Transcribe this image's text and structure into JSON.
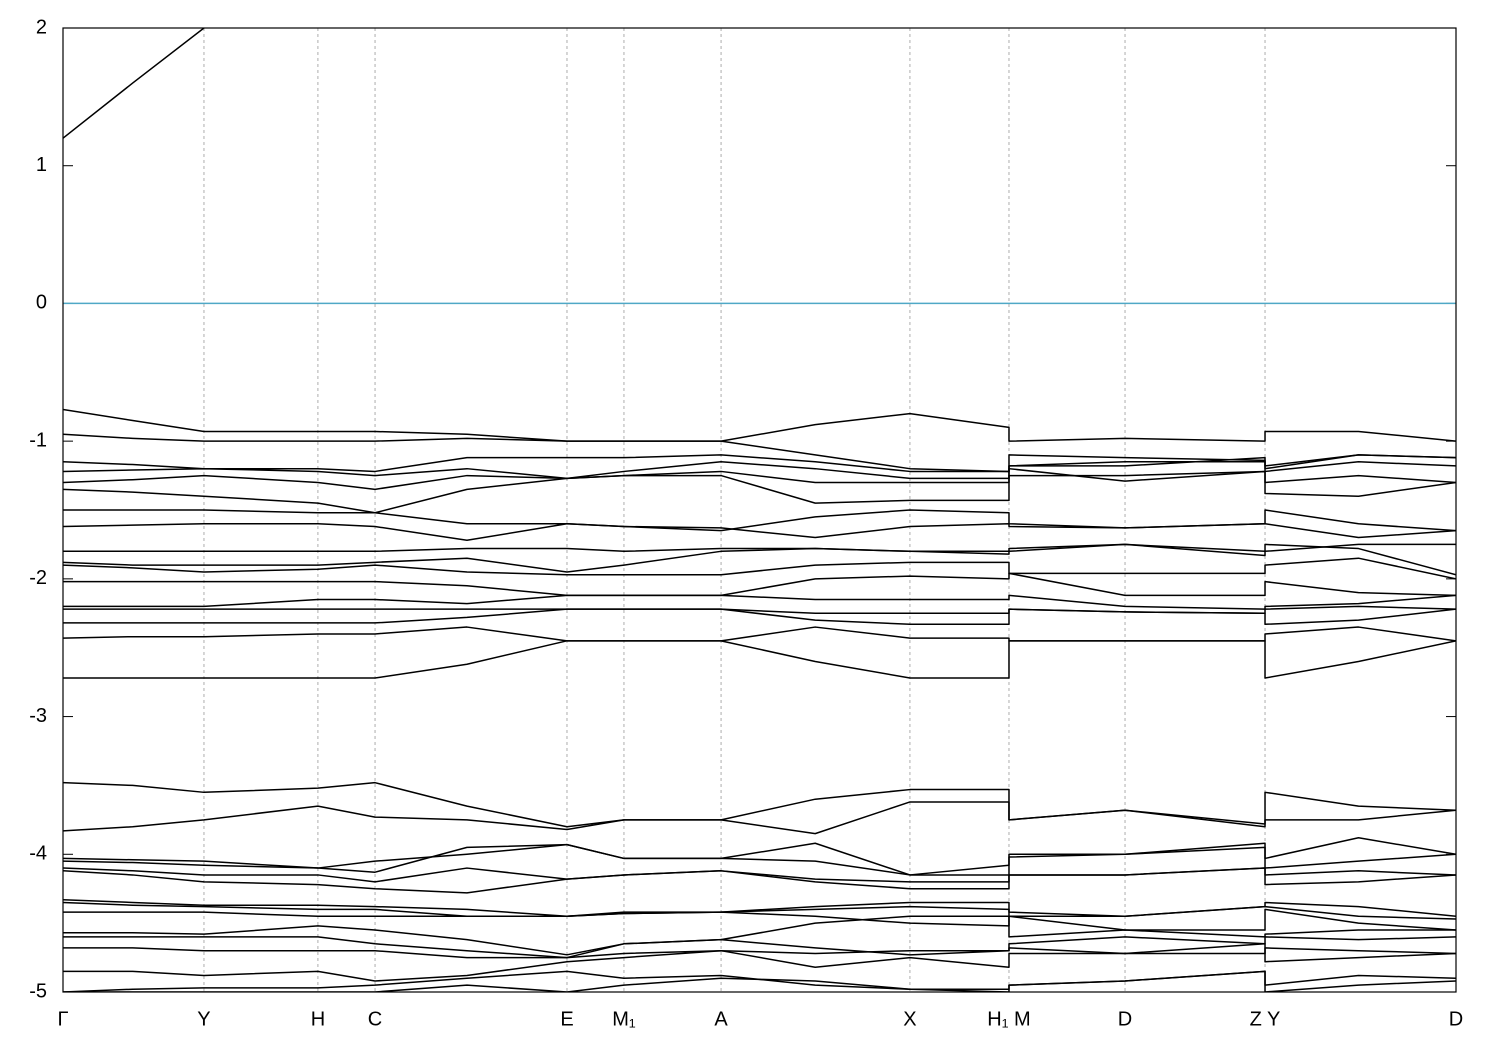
{
  "chart_data": {
    "type": "line",
    "x": [
      0,
      0.05,
      0.1012,
      0.183,
      0.224,
      0.29,
      0.3618,
      0.4027,
      0.4724,
      0.54,
      0.608,
      0.6791,
      0.6791,
      0.7624,
      0.8629,
      0.8629,
      0.93,
      1.0
    ],
    "xlim": [
      0,
      1
    ],
    "xticks": [
      {
        "value": 0,
        "label": "Γ"
      },
      {
        "value": 0.1012,
        "label": "Y"
      },
      {
        "value": 0.183,
        "label": "H"
      },
      {
        "value": 0.224,
        "label": "C"
      },
      {
        "value": 0.3618,
        "label": "E"
      },
      {
        "value": 0.4027,
        "label": "M₁"
      },
      {
        "value": 0.4724,
        "label": "A"
      },
      {
        "value": 0.608,
        "label": "X"
      },
      {
        "value": 0.6791,
        "label": "H₁ M"
      },
      {
        "value": 0.7624,
        "label": "D"
      },
      {
        "value": 0.8629,
        "label": "Z Y"
      },
      {
        "value": 1.0,
        "label": "D"
      }
    ],
    "ylim": [
      -5,
      2
    ],
    "yticks": [
      -5,
      -4,
      -3,
      -2,
      -1,
      0,
      1,
      2
    ],
    "grid": true,
    "line_color": "#000000",
    "hline": 0,
    "hline_color": "#4fa8c6",
    "series": [
      {
        "values": [
          1.2,
          1.6,
          2.0,
          null,
          null,
          null,
          null,
          null,
          null,
          null,
          null,
          null,
          null,
          null,
          null,
          null,
          null,
          null
        ]
      },
      {
        "values": [
          -0.77,
          -0.85,
          -0.93,
          -0.93,
          -0.93,
          -0.95,
          -1.0,
          -1.0,
          -1.0,
          -0.88,
          -0.8,
          -0.9,
          -1.0,
          -0.98,
          -1.0,
          -0.93,
          -0.93,
          -1.0
        ]
      },
      {
        "values": [
          -0.95,
          -0.98,
          -1.0,
          -1.0,
          -1.0,
          -0.98,
          -1.0,
          -1.0,
          -1.0,
          -1.1,
          -1.2,
          -1.22,
          -1.1,
          -1.12,
          -1.14,
          -1.18,
          -1.1,
          -1.12
        ]
      },
      {
        "values": [
          -1.15,
          -1.17,
          -1.2,
          -1.2,
          -1.22,
          -1.12,
          -1.12,
          -1.12,
          -1.1,
          -1.15,
          -1.22,
          -1.22,
          -1.18,
          -1.18,
          -1.12,
          -1.2,
          -1.1,
          -1.12
        ]
      },
      {
        "values": [
          -1.22,
          -1.21,
          -1.2,
          -1.22,
          -1.25,
          -1.2,
          -1.27,
          -1.22,
          -1.15,
          -1.2,
          -1.27,
          -1.27,
          -1.2,
          -1.29,
          -1.22,
          -1.22,
          -1.15,
          -1.18
        ]
      },
      {
        "values": [
          -1.3,
          -1.28,
          -1.25,
          -1.3,
          -1.35,
          -1.25,
          -1.27,
          -1.25,
          -1.22,
          -1.3,
          -1.3,
          -1.3,
          -1.25,
          -1.25,
          -1.22,
          -1.3,
          -1.25,
          -1.3
        ]
      },
      {
        "values": [
          -1.35,
          -1.37,
          -1.4,
          -1.45,
          -1.52,
          -1.35,
          -1.27,
          -1.25,
          -1.25,
          -1.45,
          -1.43,
          -1.43,
          -1.18,
          -1.15,
          -1.15,
          -1.38,
          -1.4,
          -1.3
        ]
      },
      {
        "values": [
          -1.5,
          -1.5,
          -1.5,
          -1.52,
          -1.52,
          -1.6,
          -1.6,
          -1.62,
          -1.65,
          -1.55,
          -1.5,
          -1.52,
          -1.6,
          -1.63,
          -1.6,
          -1.5,
          -1.6,
          -1.65
        ]
      },
      {
        "values": [
          -1.62,
          -1.61,
          -1.6,
          -1.6,
          -1.62,
          -1.72,
          -1.6,
          -1.62,
          -1.63,
          -1.7,
          -1.62,
          -1.6,
          -1.62,
          -1.63,
          -1.6,
          -1.6,
          -1.7,
          -1.65
        ]
      },
      {
        "values": [
          -1.8,
          -1.8,
          -1.8,
          -1.8,
          -1.8,
          -1.78,
          -1.78,
          -1.8,
          -1.78,
          -1.78,
          -1.8,
          -1.8,
          -1.8,
          -1.75,
          -1.83,
          -1.8,
          -1.75,
          -1.75
        ]
      },
      {
        "values": [
          -1.88,
          -1.9,
          -1.9,
          -1.9,
          -1.88,
          -1.85,
          -1.95,
          -1.9,
          -1.8,
          -1.78,
          -1.8,
          -1.82,
          -1.78,
          -1.75,
          -1.8,
          -1.75,
          -1.78,
          -1.97
        ]
      },
      {
        "values": [
          -1.9,
          -1.92,
          -1.95,
          -1.93,
          -1.9,
          -1.95,
          -1.97,
          -1.97,
          -1.97,
          -1.9,
          -1.88,
          -1.88,
          -1.96,
          -1.96,
          -1.96,
          -1.9,
          -1.85,
          -2.0
        ]
      },
      {
        "values": [
          -2.02,
          -2.02,
          -2.02,
          -2.02,
          -2.02,
          -2.05,
          -2.12,
          -2.12,
          -2.12,
          -2.0,
          -1.98,
          -2.0,
          -1.96,
          -2.12,
          -2.12,
          -2.02,
          -2.1,
          -2.12
        ]
      },
      {
        "values": [
          -2.2,
          -2.2,
          -2.2,
          -2.15,
          -2.15,
          -2.18,
          -2.12,
          -2.12,
          -2.12,
          -2.15,
          -2.15,
          -2.15,
          -2.12,
          -2.2,
          -2.22,
          -2.2,
          -2.18,
          -2.12
        ]
      },
      {
        "values": [
          -2.22,
          -2.22,
          -2.22,
          -2.22,
          -2.22,
          -2.22,
          -2.22,
          -2.22,
          -2.22,
          -2.25,
          -2.25,
          -2.25,
          -2.22,
          -2.24,
          -2.25,
          -2.22,
          -2.2,
          -2.22
        ]
      },
      {
        "values": [
          -2.32,
          -2.32,
          -2.32,
          -2.32,
          -2.32,
          -2.28,
          -2.22,
          -2.22,
          -2.22,
          -2.3,
          -2.33,
          -2.33,
          -2.22,
          -2.24,
          -2.25,
          -2.33,
          -2.3,
          -2.22
        ]
      },
      {
        "values": [
          -2.43,
          -2.42,
          -2.42,
          -2.4,
          -2.4,
          -2.35,
          -2.45,
          -2.45,
          -2.45,
          -2.35,
          -2.43,
          -2.43,
          -2.45,
          -2.45,
          -2.45,
          -2.4,
          -2.35,
          -2.45
        ]
      },
      {
        "values": [
          -2.72,
          -2.72,
          -2.72,
          -2.72,
          -2.72,
          -2.62,
          -2.45,
          -2.45,
          -2.45,
          -2.6,
          -2.72,
          -2.72,
          -2.45,
          -2.45,
          -2.45,
          -2.72,
          -2.6,
          -2.45
        ]
      },
      {
        "values": [
          -3.48,
          -3.5,
          -3.55,
          -3.52,
          -3.48,
          -3.65,
          -3.8,
          -3.75,
          -3.75,
          -3.6,
          -3.53,
          -3.53,
          -3.75,
          -3.68,
          -3.78,
          -3.55,
          -3.65,
          -3.68
        ]
      },
      {
        "values": [
          -3.83,
          -3.8,
          -3.75,
          -3.65,
          -3.73,
          -3.75,
          -3.82,
          -3.75,
          -3.75,
          -3.85,
          -3.62,
          -3.62,
          -3.75,
          -3.68,
          -3.8,
          -3.75,
          -3.75,
          -3.68
        ]
      },
      {
        "values": [
          -4.03,
          -4.04,
          -4.05,
          -4.1,
          -4.05,
          -4.0,
          -3.93,
          -4.03,
          -4.03,
          -3.92,
          -4.15,
          -4.08,
          -4.0,
          -4.0,
          -3.92,
          -4.03,
          -3.88,
          -4.0
        ]
      },
      {
        "values": [
          -4.05,
          -4.06,
          -4.08,
          -4.1,
          -4.13,
          -3.95,
          -3.93,
          -4.03,
          -4.03,
          -4.05,
          -4.15,
          -4.15,
          -4.02,
          -4.0,
          -3.95,
          -4.1,
          -4.05,
          -4.0
        ]
      },
      {
        "values": [
          -4.1,
          -4.12,
          -4.15,
          -4.15,
          -4.2,
          -4.1,
          -4.18,
          -4.15,
          -4.12,
          -4.18,
          -4.2,
          -4.2,
          -4.15,
          -4.15,
          -4.1,
          -4.15,
          -4.12,
          -4.15
        ]
      },
      {
        "values": [
          -4.12,
          -4.15,
          -4.2,
          -4.22,
          -4.25,
          -4.28,
          -4.18,
          -4.15,
          -4.12,
          -4.2,
          -4.25,
          -4.25,
          -4.15,
          -4.15,
          -4.1,
          -4.22,
          -4.2,
          -4.15
        ]
      },
      {
        "values": [
          -4.33,
          -4.35,
          -4.37,
          -4.37,
          -4.38,
          -4.4,
          -4.45,
          -4.43,
          -4.42,
          -4.38,
          -4.35,
          -4.35,
          -4.42,
          -4.45,
          -4.38,
          -4.35,
          -4.38,
          -4.45
        ]
      },
      {
        "values": [
          -4.35,
          -4.37,
          -4.38,
          -4.4,
          -4.4,
          -4.45,
          -4.45,
          -4.43,
          -4.42,
          -4.4,
          -4.38,
          -4.4,
          -4.45,
          -4.45,
          -4.38,
          -4.38,
          -4.45,
          -4.47
        ]
      },
      {
        "values": [
          -4.42,
          -4.42,
          -4.42,
          -4.45,
          -4.45,
          -4.45,
          -4.45,
          -4.42,
          -4.42,
          -4.45,
          -4.5,
          -4.52,
          -4.45,
          -4.55,
          -4.55,
          -4.4,
          -4.5,
          -4.55
        ]
      },
      {
        "values": [
          -4.57,
          -4.57,
          -4.58,
          -4.52,
          -4.55,
          -4.62,
          -4.73,
          -4.65,
          -4.62,
          -4.5,
          -4.45,
          -4.45,
          -4.6,
          -4.55,
          -4.6,
          -4.58,
          -4.55,
          -4.55
        ]
      },
      {
        "values": [
          -4.6,
          -4.6,
          -4.6,
          -4.6,
          -4.65,
          -4.7,
          -4.75,
          -4.65,
          -4.62,
          -4.68,
          -4.73,
          -4.7,
          -4.65,
          -4.6,
          -4.65,
          -4.6,
          -4.62,
          -4.6
        ]
      },
      {
        "values": [
          -4.68,
          -4.68,
          -4.7,
          -4.7,
          -4.7,
          -4.75,
          -4.75,
          -4.72,
          -4.7,
          -4.72,
          -4.7,
          -4.7,
          -4.68,
          -4.72,
          -4.72,
          -4.68,
          -4.7,
          -4.72
        ]
      },
      {
        "values": [
          -4.85,
          -4.85,
          -4.88,
          -4.85,
          -4.92,
          -4.88,
          -4.78,
          -4.75,
          -4.7,
          -4.82,
          -4.75,
          -4.82,
          -4.72,
          -4.72,
          -4.65,
          -4.78,
          -4.75,
          -4.72
        ]
      },
      {
        "values": [
          -5.0,
          -4.98,
          -4.97,
          -4.97,
          -4.95,
          -4.9,
          -4.85,
          -4.9,
          -4.88,
          -4.95,
          -4.98,
          -4.98,
          -4.95,
          -4.92,
          -4.85,
          -4.95,
          -4.88,
          -4.9
        ]
      },
      {
        "values": [
          -5.0,
          -5.0,
          -5.0,
          -5.0,
          -5.0,
          -4.95,
          -5.0,
          -4.95,
          -4.9,
          -4.92,
          -4.98,
          -5.0,
          -4.95,
          -4.92,
          -4.85,
          -5.0,
          -4.95,
          -4.92
        ]
      }
    ]
  }
}
